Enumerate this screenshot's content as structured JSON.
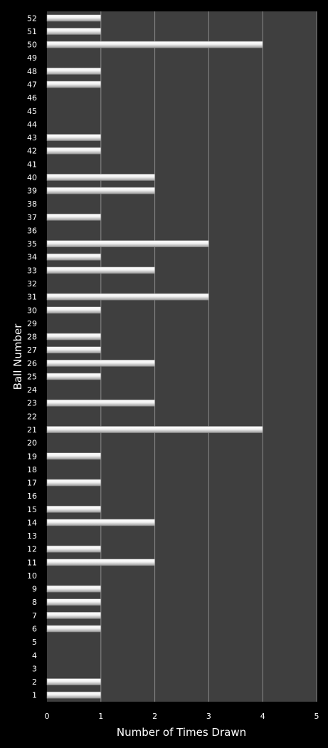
{
  "chart_data": {
    "type": "bar",
    "orientation": "horizontal",
    "categories": [
      "1",
      "2",
      "3",
      "4",
      "5",
      "6",
      "7",
      "8",
      "9",
      "10",
      "11",
      "12",
      "13",
      "14",
      "15",
      "16",
      "17",
      "18",
      "19",
      "20",
      "21",
      "22",
      "23",
      "24",
      "25",
      "26",
      "27",
      "28",
      "29",
      "30",
      "31",
      "32",
      "33",
      "34",
      "35",
      "36",
      "37",
      "38",
      "39",
      "40",
      "41",
      "42",
      "43",
      "44",
      "45",
      "46",
      "47",
      "48",
      "49",
      "50",
      "51",
      "52"
    ],
    "series": [
      {
        "values": [
          1,
          1,
          0,
          0,
          0,
          1,
          1,
          1,
          1,
          0,
          2,
          1,
          0,
          2,
          1,
          0,
          1,
          0,
          1,
          0,
          4,
          0,
          2,
          0,
          1,
          2,
          1,
          1,
          0,
          1,
          3,
          0,
          2,
          1,
          3,
          0,
          1,
          0,
          2,
          2,
          0,
          1,
          1,
          0,
          0,
          0,
          1,
          1,
          0,
          4,
          1,
          1
        ]
      }
    ],
    "xlabel": "Number of Times Drawn",
    "ylabel": "Ball Number",
    "xlim": [
      0,
      5
    ],
    "xticks": [
      "0",
      "1",
      "2",
      "3",
      "4",
      "5"
    ],
    "grid": "vertical",
    "legend": "none",
    "colors": {
      "background": "#000000",
      "plot_area": "#3f3f3f",
      "gridline": "#8c8c8c",
      "bar_light": "#ffffff",
      "bar_dark": "#9a9a9a",
      "text": "#ffffff"
    }
  }
}
